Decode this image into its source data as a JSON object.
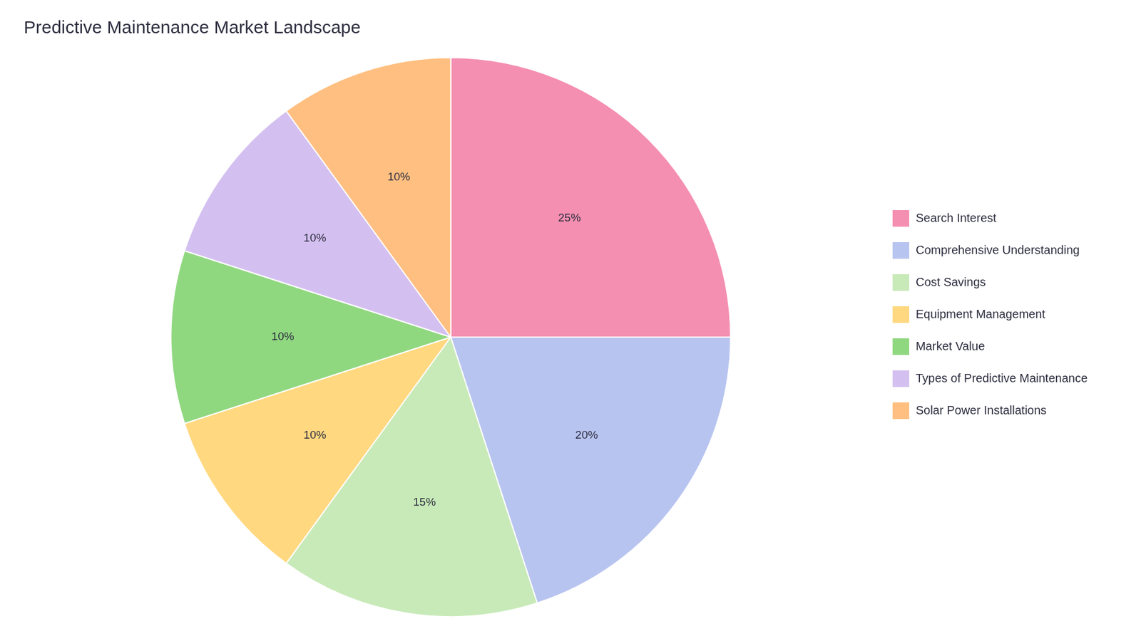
{
  "chart_data": {
    "type": "pie",
    "title": "Predictive Maintenance Market Landscape",
    "categories": [
      "Search Interest",
      "Comprehensive Understanding",
      "Cost Savings",
      "Equipment Management",
      "Market Value",
      "Types of Predictive Maintenance",
      "Solar Power Installations"
    ],
    "values": [
      25,
      20,
      15,
      10,
      10,
      10,
      10
    ],
    "value_labels": [
      "25%",
      "20%",
      "15%",
      "10%",
      "10%",
      "10%",
      "10%"
    ],
    "colors": [
      "#F48FB1",
      "#B8C4F0",
      "#C8EAB8",
      "#FFD880",
      "#90D880",
      "#D4C0F0",
      "#FFBF80"
    ],
    "data_labels": true,
    "legend": "right"
  }
}
